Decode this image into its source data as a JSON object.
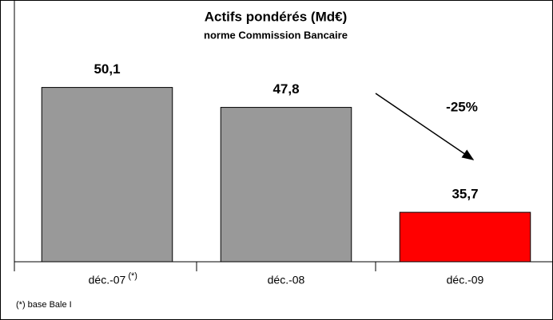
{
  "chart_data": {
    "type": "bar",
    "title": "Actifs pondérés (Md€)",
    "subtitle": "norme Commission Bancaire",
    "categories": [
      "déc.-07",
      "déc.-08",
      "déc.-09"
    ],
    "category_marker": "(*)",
    "values": [
      50.1,
      47.8,
      35.7
    ],
    "value_labels": [
      "50,1",
      "47,8",
      "35,7"
    ],
    "colors": [
      "#999999",
      "#999999",
      "#ff0000"
    ],
    "ylim": [
      30,
      60
    ],
    "annotation": "-25%",
    "footnote": "(*) base Bale I",
    "grid": false
  }
}
